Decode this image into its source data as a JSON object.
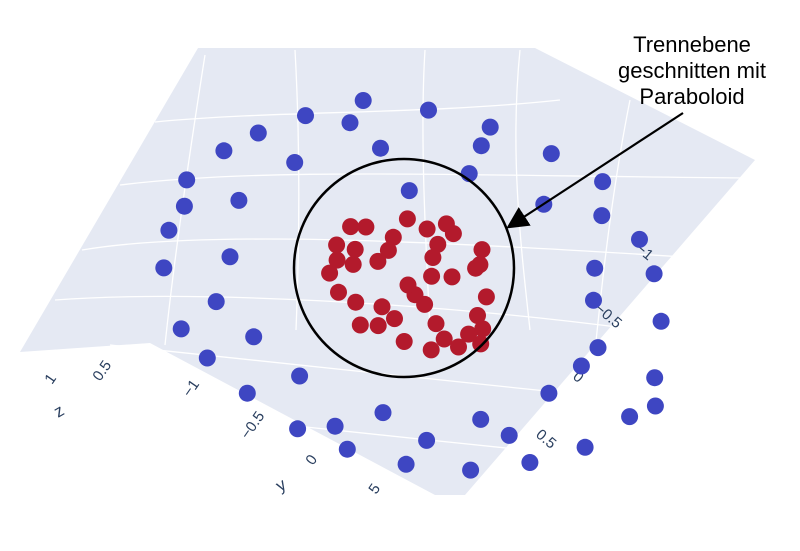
{
  "chart_data": {
    "type": "scatter",
    "subtype": "3d-scatter-with-surface",
    "colors": {
      "outer_class": "#3e46c2",
      "inner_class": "#b31a2c",
      "plane_fill": "#e5e9f3",
      "grid": "#ffffff",
      "tick_text": "#2a3f5f",
      "annotation": "#000000"
    },
    "axes": {
      "z": {
        "title": "z",
        "ticks": [
          "1",
          "0.5"
        ]
      },
      "y": {
        "title": "y",
        "ticks": [
          "−1",
          "−0.5",
          "0",
          "5"
        ]
      },
      "x": {
        "title": "",
        "ticks": [
          "−1",
          "−0.5",
          "0",
          "0.5"
        ]
      }
    },
    "annotation": {
      "lines": [
        "Trennebene",
        "geschnitten mit",
        "Paraboloid"
      ]
    },
    "series": [
      {
        "class": "outer",
        "points": [
          [
            -0.95,
            0.05
          ],
          [
            -0.93,
            -0.27
          ],
          [
            -0.85,
            -0.42
          ],
          [
            -0.82,
            0.38
          ],
          [
            -0.79,
            0.52
          ],
          [
            -0.72,
            -0.6
          ],
          [
            -0.62,
            0.68
          ],
          [
            -0.55,
            -0.78
          ],
          [
            -0.47,
            0.78
          ],
          [
            -0.37,
            -0.88
          ],
          [
            -0.27,
            0.88
          ],
          [
            -0.15,
            -0.95
          ],
          [
            -0.03,
            0.97
          ],
          [
            0.1,
            -0.97
          ],
          [
            0.22,
            0.93
          ],
          [
            0.34,
            -0.92
          ],
          [
            0.45,
            0.85
          ],
          [
            0.57,
            -0.83
          ],
          [
            0.67,
            0.72
          ],
          [
            0.77,
            -0.66
          ],
          [
            0.85,
            0.58
          ],
          [
            0.9,
            -0.45
          ],
          [
            0.95,
            0.28
          ],
          [
            0.98,
            0.1
          ],
          [
            0.97,
            -0.15
          ],
          [
            -0.9,
            0.25
          ],
          [
            -0.77,
            -0.12
          ],
          [
            -0.6,
            0.42
          ],
          [
            -0.5,
            -0.5
          ],
          [
            -0.35,
            0.63
          ],
          [
            -0.2,
            -0.68
          ],
          [
            0.0,
            0.72
          ],
          [
            0.18,
            -0.7
          ],
          [
            0.33,
            0.6
          ],
          [
            0.47,
            -0.55
          ],
          [
            0.6,
            0.45
          ],
          [
            0.7,
            -0.3
          ],
          [
            0.75,
            0.12
          ],
          [
            0.72,
            -0.05
          ],
          [
            0.62,
            -0.4
          ],
          [
            -0.68,
            0.12
          ],
          [
            -0.4,
            -0.76
          ],
          [
            0.08,
            0.5
          ],
          [
            -0.1,
            0.85
          ],
          [
            0.4,
            0.75
          ],
          [
            0.82,
            0.4
          ],
          [
            0.88,
            -0.6
          ],
          [
            -0.05,
            -0.82
          ],
          [
            0.28,
            -0.78
          ],
          [
            -0.65,
            -0.3
          ]
        ]
      },
      {
        "class": "inner",
        "points": [
          [
            -0.3,
            0.05
          ],
          [
            -0.25,
            0.2
          ],
          [
            -0.22,
            -0.1
          ],
          [
            -0.18,
            0.3
          ],
          [
            -0.15,
            -0.22
          ],
          [
            -0.1,
            0.12
          ],
          [
            -0.06,
            -0.3
          ],
          [
            -0.02,
            0.25
          ],
          [
            0.02,
            -0.05
          ],
          [
            0.05,
            0.35
          ],
          [
            0.08,
            -0.2
          ],
          [
            0.12,
            0.15
          ],
          [
            0.15,
            -0.32
          ],
          [
            0.18,
            0.05
          ],
          [
            0.22,
            0.28
          ],
          [
            0.25,
            -0.15
          ],
          [
            0.28,
            0.1
          ],
          [
            0.3,
            -0.05
          ],
          [
            0.32,
            0.2
          ],
          [
            0.2,
            -0.25
          ],
          [
            -0.28,
            -0.05
          ],
          [
            -0.2,
            0.1
          ],
          [
            -0.12,
            -0.12
          ],
          [
            -0.05,
            0.18
          ],
          [
            0.0,
            0.0
          ],
          [
            0.05,
            -0.1
          ],
          [
            0.1,
            0.05
          ],
          [
            0.15,
            0.22
          ],
          [
            -0.08,
            -0.18
          ],
          [
            0.24,
            -0.3
          ],
          [
            -0.18,
            0.18
          ],
          [
            0.1,
            -0.28
          ],
          [
            -0.26,
            0.12
          ],
          [
            0.3,
            0.12
          ],
          [
            0.2,
            0.33
          ],
          [
            -0.12,
            0.3
          ],
          [
            0.04,
            -0.34
          ],
          [
            -0.22,
            -0.22
          ],
          [
            0.26,
            -0.22
          ],
          [
            0.12,
            0.3
          ]
        ]
      }
    ]
  }
}
